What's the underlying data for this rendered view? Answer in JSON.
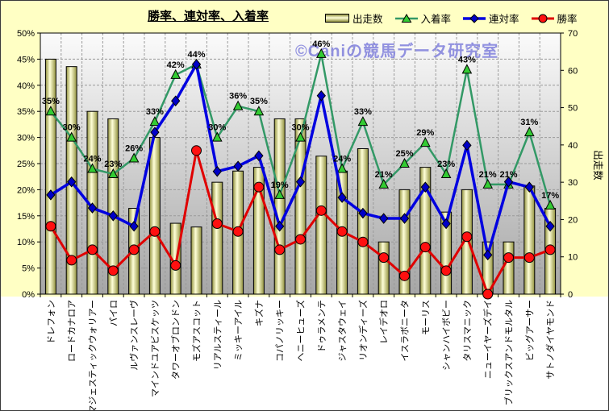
{
  "header": {
    "title": "勝率、連対率、入着率",
    "watermark": "©Caniの競馬データ研究室"
  },
  "legend": {
    "items": [
      {
        "label": "出走数"
      },
      {
        "label": "入着率"
      },
      {
        "label": "連対率"
      },
      {
        "label": "勝率"
      }
    ]
  },
  "chart_data": {
    "type": "combo-bar-line",
    "title": "勝率、連対率、入着率",
    "legend_position": "top-right",
    "grid": true,
    "categories": [
      "ドレフォン",
      "ロードカナロア",
      "マジェスティックウォリアー",
      "パイロ",
      "ルヴァンスレーヴ",
      "マインドユアビスケッツ",
      "タワーオブロンドン",
      "モズアスコット",
      "リアルスティール",
      "ミッキーアイル",
      "キズナ",
      "コパノリッキー",
      "ヘニーヒューズ",
      "ドゥラメンテ",
      "ジャスタウェイ",
      "リオンディーズ",
      "レイデオロ",
      "イスラボニータ",
      "モーリス",
      "シャンハイボビー",
      "タリスマニック",
      "ニューイヤーズデイ",
      "ブリックスアンドモルタル",
      "ビッグアーサー",
      "サトノダイヤモンド"
    ],
    "series": [
      {
        "name": "出走数",
        "type": "bar",
        "axis": "right",
        "values": [
          63,
          61,
          49,
          47,
          23,
          42,
          19,
          18,
          30,
          33,
          34,
          47,
          47,
          37,
          33,
          39,
          14,
          28,
          34,
          22,
          28,
          14,
          14,
          29,
          23
        ]
      },
      {
        "name": "入着率",
        "type": "line",
        "marker": "triangle",
        "axis": "left",
        "color": "#339966",
        "marker_color": "#33CC33",
        "data_labels": true,
        "values": [
          35,
          30,
          24,
          23,
          26,
          33,
          42,
          44,
          30,
          36,
          35,
          19,
          30,
          46,
          24,
          33,
          21,
          25,
          29,
          23,
          43,
          21,
          21,
          31,
          17
        ]
      },
      {
        "name": "連対率",
        "type": "line",
        "marker": "diamond",
        "axis": "left",
        "color": "#0000E0",
        "marker_color": "#0000C8",
        "values": [
          19,
          21.5,
          16.5,
          15,
          13,
          31,
          37,
          44,
          23.5,
          24.5,
          26.5,
          13,
          21.5,
          38,
          18.5,
          15.5,
          14.5,
          14.5,
          20.5,
          13.5,
          28.5,
          7.5,
          21.5,
          20.5,
          13
        ]
      },
      {
        "name": "勝率",
        "type": "line",
        "marker": "circle",
        "axis": "left",
        "color": "#E00000",
        "marker_color": "#FF1010",
        "values": [
          13,
          6.5,
          8.5,
          4.5,
          8.5,
          12,
          5.5,
          27.5,
          13.5,
          12,
          20.5,
          8.5,
          10.5,
          16,
          12,
          10,
          7,
          3.5,
          9,
          4.5,
          11,
          0,
          7,
          7,
          8.5
        ]
      }
    ],
    "left_axis": {
      "min": 0,
      "max": 50,
      "step": 5,
      "suffix": "%",
      "ticks": [
        "0%",
        "5%",
        "10%",
        "15%",
        "20%",
        "25%",
        "30%",
        "35%",
        "40%",
        "45%",
        "50%"
      ]
    },
    "right_axis": {
      "min": 0,
      "max": 70,
      "step": 10,
      "title": "出走数",
      "ticks": [
        "0",
        "10",
        "20",
        "30",
        "40",
        "50",
        "60",
        "70"
      ]
    },
    "colors": {
      "background": "#FFFFC4",
      "plot_top": "#FBFBFB",
      "plot_bottom": "#A6A6A6",
      "bar_edge": "#90903C",
      "bar_center": "#FFFFD8",
      "grid": "#9A9A9A",
      "watermark": "#8080DC"
    }
  }
}
